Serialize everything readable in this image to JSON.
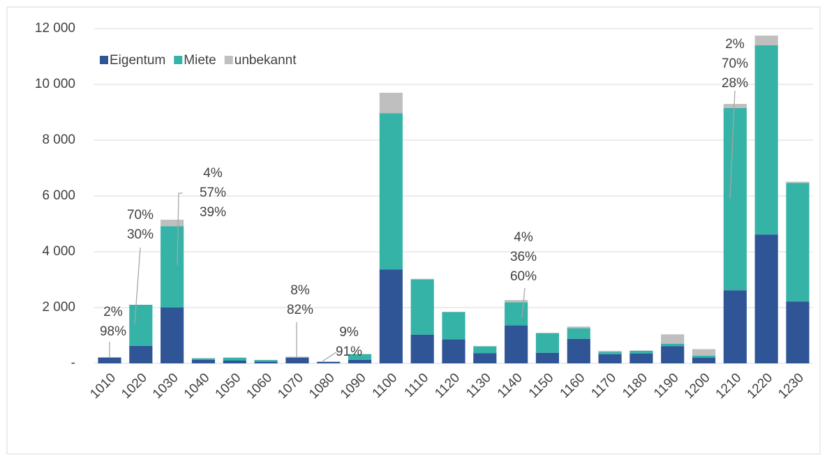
{
  "chart_data": {
    "type": "stacked_bar",
    "categories": [
      "1010",
      "1020",
      "1030",
      "1040",
      "1050",
      "1060",
      "1070",
      "1080",
      "1090",
      "1100",
      "1110",
      "1120",
      "1130",
      "1140",
      "1150",
      "1160",
      "1170",
      "1180",
      "1190",
      "1200",
      "1210",
      "1220",
      "1230"
    ],
    "series": [
      {
        "name": "Eigentum",
        "color": "#2f5597",
        "values": [
          210,
          630,
          2000,
          130,
          100,
          60,
          200,
          55,
          130,
          3370,
          1030,
          860,
          370,
          1360,
          380,
          880,
          330,
          350,
          620,
          200,
          2620,
          4620,
          2220
        ]
      },
      {
        "name": "Miete",
        "color": "#35b3a7",
        "values": [
          5,
          1470,
          2920,
          50,
          100,
          60,
          20,
          5,
          200,
          5600,
          1980,
          980,
          240,
          830,
          700,
          380,
          80,
          100,
          80,
          80,
          6530,
          6780,
          4250
        ]
      },
      {
        "name": "unbekannt",
        "color": "#bfbfbf",
        "values": [
          0,
          0,
          230,
          10,
          10,
          5,
          20,
          0,
          10,
          730,
          20,
          10,
          10,
          80,
          20,
          60,
          40,
          10,
          340,
          230,
          150,
          350,
          40
        ]
      }
    ],
    "ylim": [
      0,
      12000
    ],
    "yticks": [
      {
        "value": 0,
        "label": "-"
      },
      {
        "value": 2000,
        "label": "2 000"
      },
      {
        "value": 4000,
        "label": "4 000"
      },
      {
        "value": 6000,
        "label": "6 000"
      },
      {
        "value": 8000,
        "label": "8 000"
      },
      {
        "value": 10000,
        "label": "10 000"
      },
      {
        "value": 12000,
        "label": "12 000"
      }
    ],
    "grid": true,
    "legend": "top-left",
    "annotations": [
      {
        "lines": [
          "2%",
          "98%"
        ]
      },
      {
        "lines": [
          "70%",
          "30%"
        ]
      },
      {
        "lines": [
          "4%",
          "57%",
          "39%"
        ]
      },
      {
        "lines": [
          "8%",
          "82%"
        ]
      },
      {
        "lines": [
          "9%",
          "91%"
        ]
      },
      {
        "lines": [
          "4%",
          "36%",
          "60%"
        ]
      },
      {
        "lines": [
          "2%",
          "70%",
          "28%"
        ]
      }
    ]
  }
}
